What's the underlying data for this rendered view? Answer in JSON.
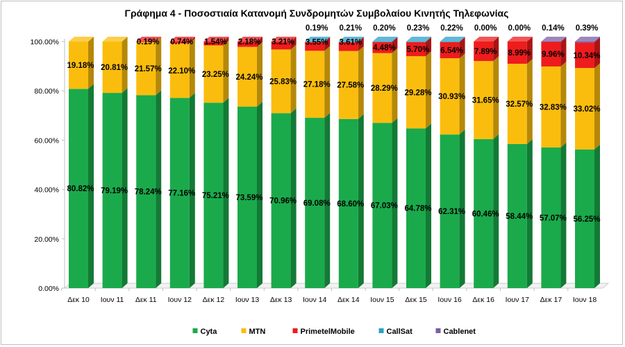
{
  "chart_data": {
    "type": "bar",
    "stacked": true,
    "three_d": true,
    "title": "Γράφημα 4 - Ποσοστιαία Κατανομή Συνδρομητών Συμβολαίου Κινητής Τηλεφωνίας",
    "categories": [
      "Δεκ 10",
      "Ιουν 11",
      "Δεκ 11",
      "Ιουν 12",
      "Δεκ 12",
      "Ιουν 13",
      "Δεκ 13",
      "Ιουν 14",
      "Δεκ 14",
      "Ιουν 15",
      "Δεκ 15",
      "Ιουν 16",
      "Δεκ 16",
      "Ιουν 17",
      "Δεκ 17",
      "Ιουν 18"
    ],
    "y_ticks": [
      "0.00%",
      "20.00%",
      "40.00%",
      "60.00%",
      "80.00%",
      "100.00%"
    ],
    "ylim": [
      0,
      100
    ],
    "grid": false,
    "legend_position": "bottom",
    "series": [
      {
        "name": "Cyta",
        "color": "#1aaa4b",
        "values": [
          80.82,
          79.19,
          78.24,
          77.16,
          75.21,
          73.59,
          70.96,
          69.08,
          68.6,
          67.03,
          64.78,
          62.31,
          60.46,
          58.44,
          57.07,
          56.25
        ],
        "labels": [
          "80.82%",
          "79.19%",
          "78.24%",
          "77.16%",
          "75.21%",
          "73.59%",
          "70.96%",
          "69.08%",
          "68.60%",
          "67.03%",
          "64.78%",
          "62.31%",
          "60.46%",
          "58.44%",
          "57.07%",
          "56.25%"
        ]
      },
      {
        "name": "MTN",
        "color": "#fbbd0d",
        "values": [
          19.18,
          20.81,
          21.57,
          22.1,
          23.25,
          24.24,
          25.83,
          27.18,
          27.58,
          28.29,
          29.28,
          30.93,
          31.65,
          32.57,
          32.83,
          33.02
        ],
        "labels": [
          "19.18%",
          "20.81%",
          "21.57%",
          "22.10%",
          "23.25%",
          "24.24%",
          "25.83%",
          "27.18%",
          "27.58%",
          "28.29%",
          "29.28%",
          "30.93%",
          "31.65%",
          "32.57%",
          "32.83%",
          "33.02%"
        ]
      },
      {
        "name": "PrimetelMobile",
        "color": "#ee1c1c",
        "values": [
          0,
          0,
          0.19,
          0.74,
          1.54,
          2.18,
          3.21,
          3.55,
          3.61,
          4.48,
          5.7,
          6.54,
          7.89,
          8.99,
          9.96,
          10.34
        ],
        "labels": [
          "",
          "",
          "0.19%",
          "0.74%",
          "1.54%",
          "2.18%",
          "3.21%",
          "3.55%",
          "3.61%",
          "4.48%",
          "5.70%",
          "6.54%",
          "7.89%",
          "8.99%",
          "9.96%",
          "10.34%"
        ]
      },
      {
        "name": "CallSat",
        "color": "#2e9fc7",
        "values": [
          0,
          0,
          0,
          0,
          0,
          0,
          0,
          0.19,
          0.21,
          0.2,
          0.23,
          0.22,
          0,
          0,
          0,
          0
        ],
        "labels": [
          "",
          "",
          "",
          "",
          "",
          "",
          "",
          "0.19%",
          "0.21%",
          "0.20%",
          "0.23%",
          "0.22%",
          "0.00%",
          "0.00%",
          "",
          ""
        ]
      },
      {
        "name": "Cablenet",
        "color": "#7d5ea6",
        "values": [
          0,
          0,
          0,
          0,
          0,
          0,
          0,
          0,
          0,
          0,
          0,
          0,
          0,
          0,
          0.14,
          0.39
        ],
        "labels": [
          "",
          "",
          "",
          "",
          "",
          "",
          "",
          "",
          "",
          "",
          "",
          "",
          "",
          "",
          "0.14%",
          "0.39%"
        ]
      }
    ]
  }
}
